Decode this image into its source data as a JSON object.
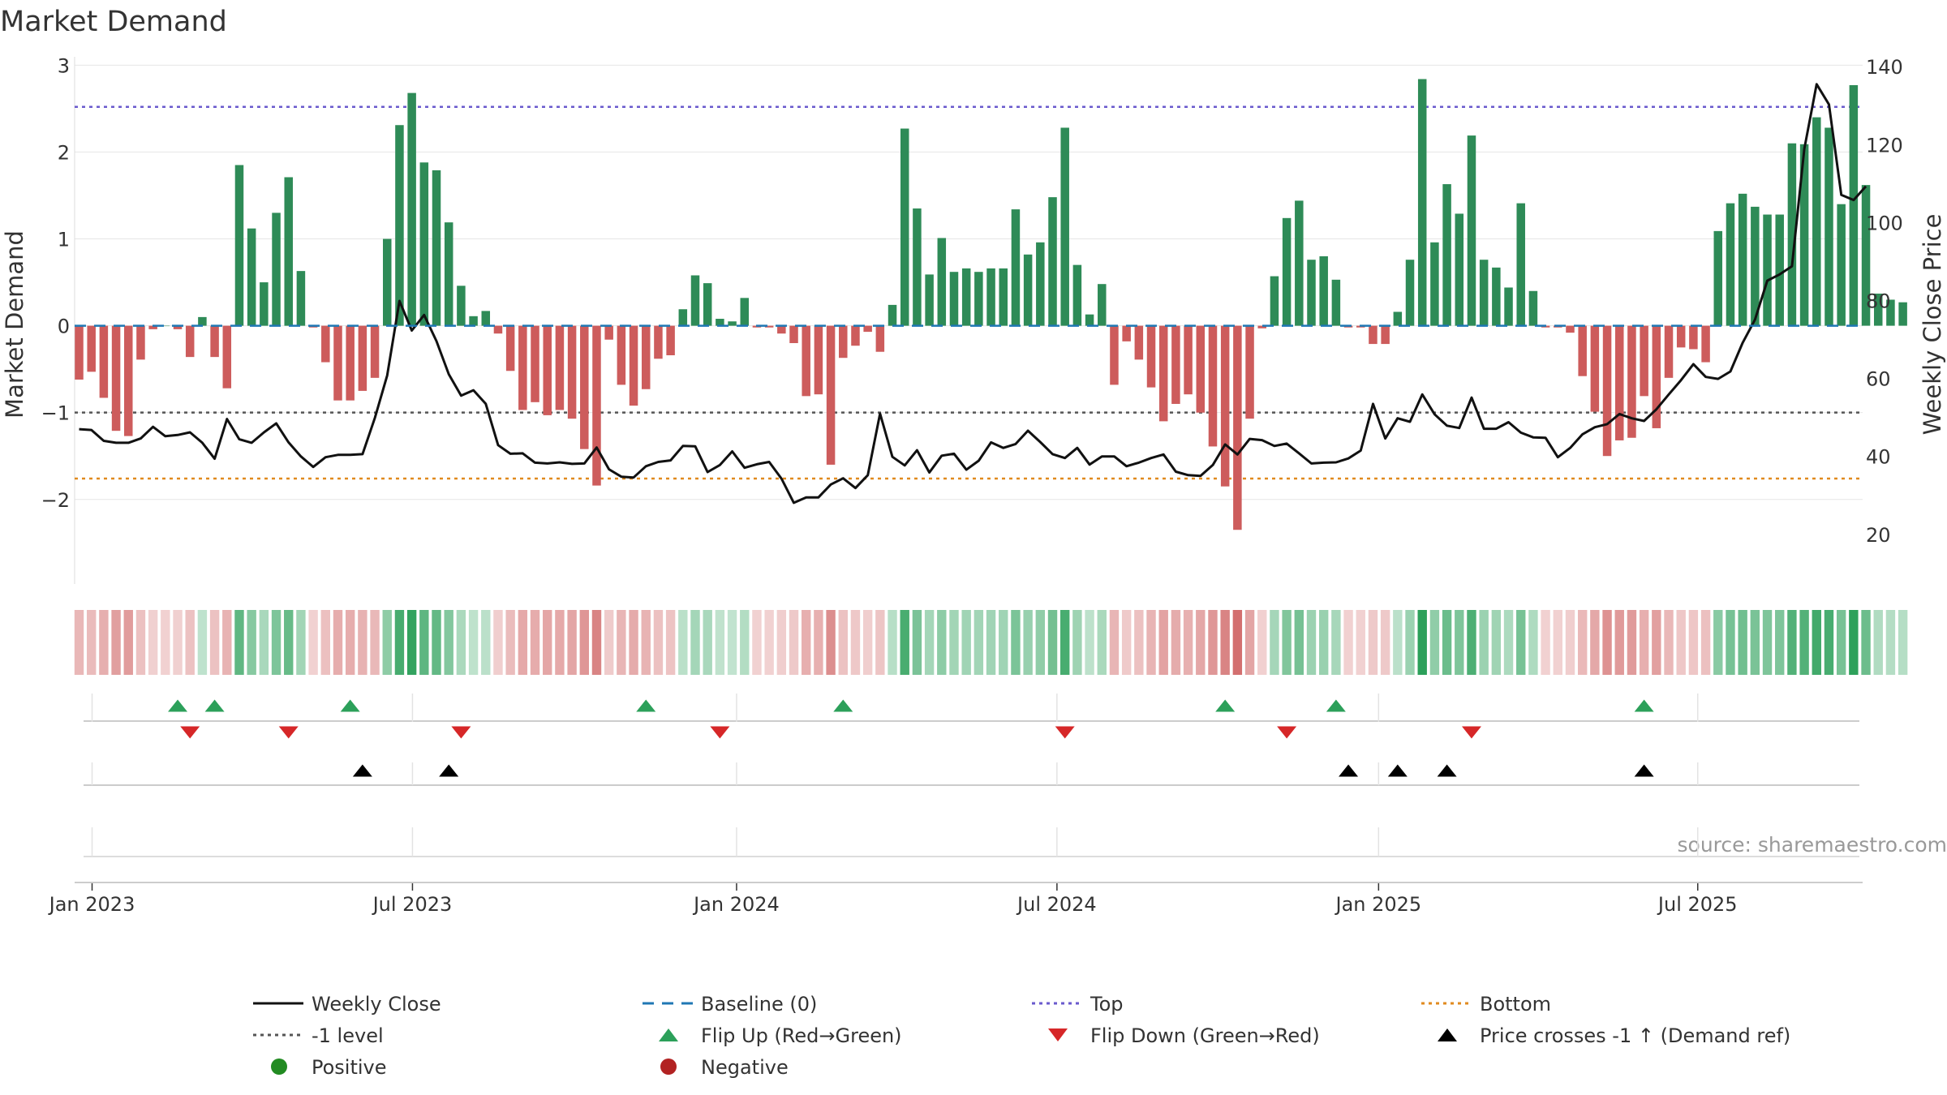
{
  "chart_data": {
    "type": "bar",
    "title": "Market Demand",
    "ylabel_left": "Market Demand",
    "ylabel_right": "Weekly Close Price",
    "left_ylim": [
      -2.6,
      3.05
    ],
    "left_ticks": [
      -2,
      -1,
      0,
      1,
      2,
      3
    ],
    "left_tick_labels": [
      "−2",
      "−1",
      "0",
      "1",
      "2",
      "3"
    ],
    "right_ylim": [
      15.6,
      141.5
    ],
    "right_ticks": [
      20,
      40,
      60,
      80,
      100,
      120,
      140
    ],
    "start_date": "2023-01-02",
    "x_ticks": [
      {
        "label": "Jan 2023",
        "week": 0
      },
      {
        "label": "Jul 2023",
        "week": 26
      },
      {
        "label": "Jan 2024",
        "week": 52.3
      },
      {
        "label": "Jul 2024",
        "week": 78.3
      },
      {
        "label": "Jan 2025",
        "week": 104.4
      },
      {
        "label": "Jul 2025",
        "week": 130.3
      }
    ],
    "reference_lines": {
      "baseline": 0,
      "top": 2.52,
      "bottom": -1.76,
      "minus_one": -1
    },
    "demand": [
      -0.62,
      -0.53,
      -0.83,
      -1.21,
      -1.27,
      -0.39,
      -0.04,
      0,
      -0.04,
      -0.36,
      0.1,
      -0.36,
      -0.72,
      1.85,
      1.12,
      0.5,
      1.3,
      1.71,
      0.63,
      -0.02,
      -0.42,
      -0.86,
      -0.86,
      -0.75,
      -0.6,
      1.0,
      2.31,
      2.68,
      1.88,
      1.79,
      1.19,
      0.46,
      0.11,
      0.17,
      -0.09,
      -0.52,
      -0.97,
      -0.88,
      -1.03,
      -0.97,
      -1.07,
      -1.42,
      -1.84,
      -0.16,
      -0.68,
      -0.92,
      -0.73,
      -0.38,
      -0.34,
      0.19,
      0.58,
      0.49,
      0.08,
      0.05,
      0.32,
      -0.02,
      -0.02,
      -0.09,
      -0.2,
      -0.81,
      -0.79,
      -1.6,
      -0.37,
      -0.23,
      -0.07,
      -0.3,
      0.24,
      2.27,
      1.35,
      0.59,
      1.01,
      0.62,
      0.66,
      0.62,
      0.66,
      0.66,
      1.34,
      0.82,
      0.96,
      1.48,
      2.28,
      0.7,
      0.13,
      0.48,
      -0.68,
      -0.18,
      -0.39,
      -0.71,
      -1.1,
      -0.9,
      -0.79,
      -1.0,
      -1.39,
      -1.85,
      -2.35,
      -1.07,
      -0.03,
      0.57,
      1.24,
      1.44,
      0.76,
      0.8,
      0.53,
      -0.02,
      -0.02,
      -0.21,
      -0.21,
      0.16,
      0.76,
      2.84,
      0.96,
      1.63,
      1.29,
      2.19,
      0.76,
      0.67,
      0.44,
      1.41,
      0.4,
      -0.02,
      -0.02,
      -0.08,
      -0.58,
      -0.99,
      -1.5,
      -1.32,
      -1.29,
      -0.81,
      -1.18,
      -0.6,
      -0.25,
      -0.27,
      -0.42,
      1.09,
      1.41,
      1.52,
      1.37,
      1.28,
      1.28,
      2.1,
      2.09,
      2.4,
      2.28,
      1.4,
      2.77,
      1.62,
      0.37,
      0.3,
      0.27
    ],
    "price": [
      47,
      46.8,
      44,
      43.5,
      43.5,
      44.6,
      47.6,
      45.2,
      45.5,
      46.2,
      43.5,
      39.4,
      49.6,
      44.4,
      43.5,
      46.2,
      48.5,
      43.6,
      40,
      37.3,
      39.8,
      40.4,
      40.4,
      40.6,
      49.9,
      60.8,
      79.9,
      72.3,
      76.3,
      69.6,
      61.1,
      55.6,
      57,
      53.5,
      42.9,
      40.7,
      40.8,
      38.4,
      38.2,
      38.5,
      38.1,
      38.2,
      42.3,
      36.7,
      34.8,
      34.6,
      37.5,
      38.6,
      39,
      42.7,
      42.6,
      36,
      37.8,
      41.3,
      37.1,
      38,
      38.6,
      34.3,
      28.1,
      29.5,
      29.5,
      32.8,
      34.4,
      31.9,
      35.2,
      51,
      39.9,
      37.7,
      41.6,
      35.9,
      40.2,
      40.7,
      36.6,
      38.9,
      43.6,
      42.2,
      43.2,
      46.6,
      43.7,
      40.6,
      39.6,
      42.2,
      37.9,
      40,
      40,
      37.5,
      38.4,
      39.6,
      40.5,
      36.1,
      35.2,
      35,
      37.8,
      43.1,
      40.5,
      44.5,
      44.2,
      42.7,
      43.3,
      40.8,
      38.2,
      38.4,
      38.5,
      39.5,
      41.5,
      53.5,
      44.6,
      49.8,
      48.9,
      55.9,
      50.8,
      47.9,
      47.3,
      55.1,
      47.1,
      47.1,
      48.8,
      46.1,
      44.9,
      44.8,
      39.8,
      42.2,
      45.7,
      47.5,
      48.3,
      50.9,
      49.8,
      49.1,
      52.1,
      55.9,
      59.6,
      63.7,
      60.4,
      59.9,
      61.8,
      69.2,
      75.1,
      85.1,
      86.7,
      88.8,
      118.9,
      135.5,
      130.3,
      107.1,
      105.8,
      109.3
    ],
    "flip_up_weeks": [
      8,
      11,
      22,
      46,
      62,
      93,
      102,
      127
    ],
    "flip_down_weeks": [
      9,
      17,
      31,
      52,
      80,
      98,
      113
    ],
    "price_cross_weeks": [
      23,
      30,
      103,
      107,
      111,
      127
    ],
    "source_text": "source: sharemaestro.com",
    "legend": [
      {
        "label": "Weekly Close",
        "symbol": "solid-line",
        "color": "#111111"
      },
      {
        "label": "Baseline (0)",
        "symbol": "dashed-line",
        "color": "#1f77b4"
      },
      {
        "label": "Top",
        "symbol": "dotted-line",
        "color": "#6a5acd"
      },
      {
        "label": "Bottom",
        "symbol": "dotted-line",
        "color": "#e08a1e"
      },
      {
        "label": "-1 level",
        "symbol": "dotted-line",
        "color": "#555555"
      },
      {
        "label": "Flip Up (Red→Green)",
        "symbol": "triangle-up",
        "color": "#2ca05a"
      },
      {
        "label": "Flip Down (Green→Red)",
        "symbol": "triangle-down",
        "color": "#d62728"
      },
      {
        "label": "Price crosses -1 ↑ (Demand ref)",
        "symbol": "triangle-up",
        "color": "#000000"
      },
      {
        "label": "Positive",
        "symbol": "circle",
        "color": "#228b22"
      },
      {
        "label": "Negative",
        "symbol": "circle",
        "color": "#b22222"
      }
    ],
    "colors": {
      "positive_bar": "#2e8b57",
      "negative_bar": "#cd5c5c"
    }
  }
}
